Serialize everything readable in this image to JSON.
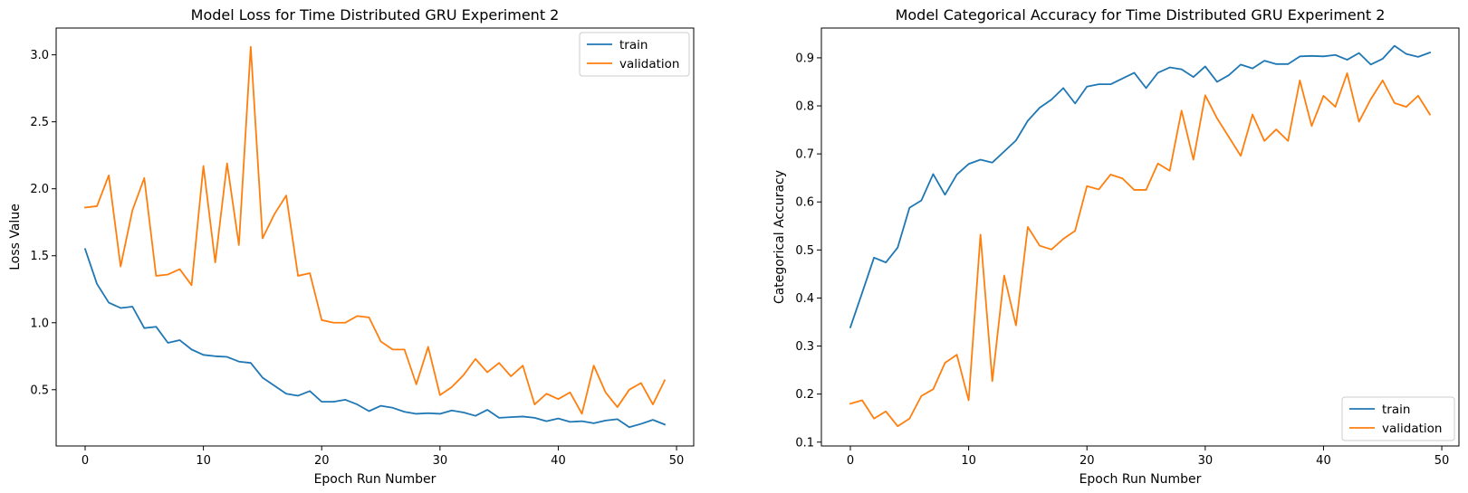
{
  "chart_data": [
    {
      "type": "line",
      "title": "Model Loss for Time Distributed GRU Experiment 2",
      "xlabel": "Epoch Run Number",
      "ylabel": "Loss Value",
      "xlim": [
        -2.45,
        51.45
      ],
      "ylim": [
        0.08,
        3.2
      ],
      "xticks": [
        0,
        10,
        20,
        30,
        40,
        50
      ],
      "yticks": [
        0.5,
        1.0,
        1.5,
        2.0,
        2.5,
        3.0
      ],
      "legend_position": "top-right",
      "grid": false,
      "x": [
        0,
        1,
        2,
        3,
        4,
        5,
        6,
        7,
        8,
        9,
        10,
        11,
        12,
        13,
        14,
        15,
        16,
        17,
        18,
        19,
        20,
        21,
        22,
        23,
        24,
        25,
        26,
        27,
        28,
        29,
        30,
        31,
        32,
        33,
        34,
        35,
        36,
        37,
        38,
        39,
        40,
        41,
        42,
        43,
        44,
        45,
        46,
        47,
        48,
        49
      ],
      "series": [
        {
          "name": "train",
          "color": "#1f77b4",
          "values": [
            1.55,
            1.29,
            1.15,
            1.11,
            1.12,
            0.96,
            0.97,
            0.85,
            0.87,
            0.8,
            0.76,
            0.75,
            0.745,
            0.71,
            0.7,
            0.59,
            0.53,
            0.47,
            0.455,
            0.49,
            0.41,
            0.41,
            0.425,
            0.39,
            0.34,
            0.38,
            0.365,
            0.335,
            0.32,
            0.325,
            0.32,
            0.345,
            0.33,
            0.305,
            0.35,
            0.29,
            0.295,
            0.3,
            0.29,
            0.265,
            0.285,
            0.26,
            0.265,
            0.25,
            0.27,
            0.28,
            0.22,
            0.245,
            0.275,
            0.24
          ]
        },
        {
          "name": "validation",
          "color": "#ff7f0e",
          "values": [
            1.86,
            1.87,
            2.1,
            1.42,
            1.84,
            2.08,
            1.35,
            1.36,
            1.4,
            1.28,
            2.17,
            1.45,
            2.19,
            1.58,
            3.06,
            1.63,
            1.81,
            1.95,
            1.35,
            1.37,
            1.02,
            1.0,
            1.0,
            1.05,
            1.04,
            0.86,
            0.8,
            0.8,
            0.54,
            0.82,
            0.46,
            0.52,
            0.61,
            0.73,
            0.63,
            0.7,
            0.6,
            0.68,
            0.39,
            0.47,
            0.43,
            0.48,
            0.32,
            0.68,
            0.48,
            0.37,
            0.5,
            0.55,
            0.39,
            0.57
          ]
        }
      ]
    },
    {
      "type": "line",
      "title": "Model Categorical Accuracy for Time Distributed GRU Experiment 2",
      "xlabel": "Epoch Run Number",
      "ylabel": "Categorical Accuracy",
      "xlim": [
        -2.45,
        51.45
      ],
      "ylim": [
        0.092,
        0.962
      ],
      "xticks": [
        0,
        10,
        20,
        30,
        40,
        50
      ],
      "yticks": [
        0.1,
        0.2,
        0.3,
        0.4,
        0.5,
        0.6,
        0.7,
        0.8,
        0.9
      ],
      "legend_position": "bottom-right",
      "grid": false,
      "x": [
        0,
        1,
        2,
        3,
        4,
        5,
        6,
        7,
        8,
        9,
        10,
        11,
        12,
        13,
        14,
        15,
        16,
        17,
        18,
        19,
        20,
        21,
        22,
        23,
        24,
        25,
        26,
        27,
        28,
        29,
        30,
        31,
        32,
        33,
        34,
        35,
        36,
        37,
        38,
        39,
        40,
        41,
        42,
        43,
        44,
        45,
        46,
        47,
        48,
        49
      ],
      "series": [
        {
          "name": "train",
          "color": "#1f77b4",
          "values": [
            0.339,
            0.411,
            0.484,
            0.474,
            0.505,
            0.588,
            0.603,
            0.658,
            0.615,
            0.657,
            0.679,
            0.688,
            0.682,
            0.705,
            0.728,
            0.769,
            0.796,
            0.813,
            0.837,
            0.805,
            0.84,
            0.845,
            0.845,
            0.857,
            0.869,
            0.837,
            0.869,
            0.88,
            0.876,
            0.86,
            0.882,
            0.85,
            0.864,
            0.886,
            0.878,
            0.894,
            0.887,
            0.887,
            0.903,
            0.904,
            0.903,
            0.906,
            0.896,
            0.91,
            0.886,
            0.898,
            0.925,
            0.908,
            0.902,
            0.911
          ]
        },
        {
          "name": "validation",
          "color": "#ff7f0e",
          "values": [
            0.18,
            0.187,
            0.149,
            0.164,
            0.133,
            0.149,
            0.196,
            0.21,
            0.265,
            0.282,
            0.187,
            0.532,
            0.227,
            0.447,
            0.343,
            0.548,
            0.509,
            0.501,
            0.523,
            0.54,
            0.633,
            0.626,
            0.657,
            0.649,
            0.625,
            0.625,
            0.68,
            0.665,
            0.79,
            0.688,
            0.822,
            0.774,
            0.735,
            0.696,
            0.782,
            0.727,
            0.751,
            0.727,
            0.853,
            0.758,
            0.821,
            0.798,
            0.868,
            0.767,
            0.814,
            0.853,
            0.806,
            0.798,
            0.821,
            0.782
          ]
        }
      ]
    }
  ]
}
